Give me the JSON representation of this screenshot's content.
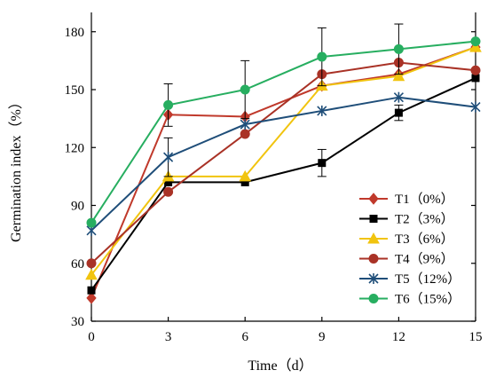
{
  "chart_data": {
    "type": "line",
    "title": "",
    "xlabel": "Time（d）",
    "ylabel": "Germination index（%）",
    "x": [
      0,
      3,
      6,
      9,
      12,
      15
    ],
    "xlim": [
      0,
      15
    ],
    "ylim": [
      30,
      190
    ],
    "xticks": [
      "0",
      "3",
      "6",
      "9",
      "12",
      "15"
    ],
    "yticks": [
      "30",
      "60",
      "90",
      "120",
      "150",
      "180"
    ],
    "grid": false,
    "legend_position": "bottom-right",
    "series": [
      {
        "name": "T1（0%）",
        "color": "#c0392b",
        "marker": "diamond",
        "values": [
          42,
          137,
          136,
          152,
          158,
          172
        ],
        "errors": [
          0,
          0,
          0,
          0,
          0,
          0
        ]
      },
      {
        "name": "T2（3%）",
        "color": "#000000",
        "marker": "square",
        "values": [
          46,
          102,
          102,
          112,
          138,
          156
        ],
        "errors": [
          0,
          0,
          0,
          7,
          4,
          0
        ]
      },
      {
        "name": "T3（6%）",
        "color": "#f1c40f",
        "marker": "triangle",
        "values": [
          54,
          105,
          105,
          152,
          157,
          172
        ],
        "errors": [
          0,
          0,
          0,
          0,
          0,
          0
        ]
      },
      {
        "name": "T4（9%）",
        "color": "#a93226",
        "marker": "circle",
        "values": [
          60,
          97,
          127,
          158,
          164,
          160
        ],
        "errors": [
          0,
          0,
          0,
          0,
          0,
          0
        ]
      },
      {
        "name": "T5（12%）",
        "color": "#1f4e79",
        "marker": "star",
        "values": [
          77,
          115,
          132,
          139,
          146,
          141
        ],
        "errors": [
          0,
          10,
          0,
          0,
          0,
          0
        ]
      },
      {
        "name": "T6（15%）",
        "color": "#27ae60",
        "marker": "circle",
        "values": [
          81,
          142,
          150,
          167,
          171,
          175
        ],
        "errors": [
          0,
          11,
          15,
          15,
          13,
          0
        ]
      }
    ]
  }
}
